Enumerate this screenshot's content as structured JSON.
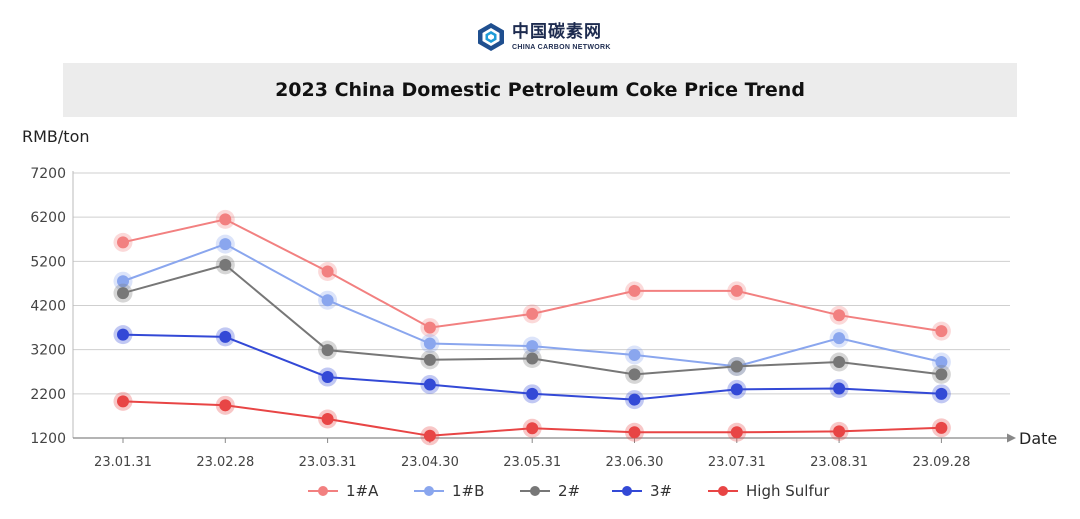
{
  "logo": {
    "name_cn": "中国碳素网",
    "name_en": "CHINA CARBON NETWORK"
  },
  "chart_data": {
    "type": "line",
    "title": "2023 China Domestic Petroleum Coke Price Trend",
    "ylabel": "RMB/ton",
    "xlabel": "Date",
    "categories": [
      "23.01.31",
      "23.02.28",
      "23.03.31",
      "23.04.30",
      "23.05.31",
      "23.06.30",
      "23.07.31",
      "23.08.31",
      "23.09.28"
    ],
    "ylim": [
      1200,
      7200
    ],
    "yticks": [
      1200,
      2200,
      3200,
      4200,
      5200,
      6200,
      7200
    ],
    "grid": true,
    "legend_position": "bottom",
    "series": [
      {
        "name": "1#A",
        "color": "#f28080",
        "values": [
          5630,
          6150,
          4970,
          3700,
          4010,
          4530,
          4530,
          3980,
          3620
        ]
      },
      {
        "name": "1#B",
        "color": "#8aa6ee",
        "values": [
          4750,
          5590,
          4320,
          3340,
          3280,
          3080,
          2820,
          3460,
          2920
        ]
      },
      {
        "name": "2#",
        "color": "#777777",
        "values": [
          4480,
          5120,
          3190,
          2970,
          3000,
          2640,
          2820,
          2920,
          2640
        ]
      },
      {
        "name": "3#",
        "color": "#3349d6",
        "values": [
          3540,
          3490,
          2580,
          2410,
          2200,
          2070,
          2300,
          2320,
          2200
        ]
      },
      {
        "name": "High Sulfur",
        "color": "#e84545",
        "values": [
          2030,
          1940,
          1630,
          1250,
          1420,
          1330,
          1330,
          1350,
          1430
        ]
      }
    ]
  }
}
